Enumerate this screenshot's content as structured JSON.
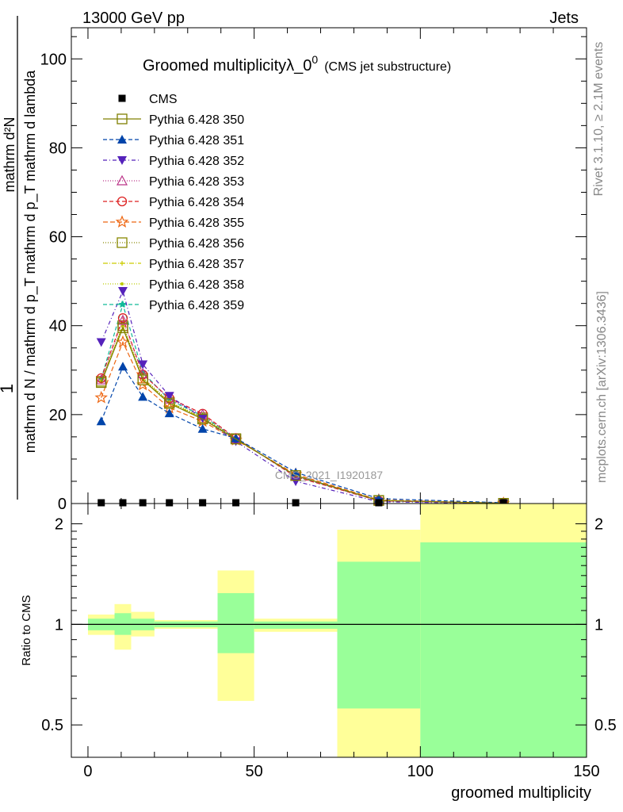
{
  "header": {
    "energy_label": "13000 GeV pp",
    "category": "Jets"
  },
  "title": {
    "main": "Groomed multiplicityλ_0",
    "superscript": "0",
    "sub": "(CMS jet substructure)"
  },
  "side_labels": {
    "rivet": "Rivet 3.1.10, ≥ 2.1M events",
    "mcplots": "mcplots.cern.ch [arXiv:1306.3436]"
  },
  "watermark": "CMS_2021_I1920187",
  "colors": {
    "band_yellow": "#ffff99",
    "band_green": "#99ff99",
    "reference": "#000000"
  },
  "chart_data": [
    {
      "type": "line",
      "panel": "main",
      "ylabel_numerator": "1",
      "ylabel_denominator": "mathrm d N / mathrm d p_T mathrm d p_T mathrm d lambda",
      "ylabel_top": "mathrm d²N",
      "xlim": [
        -5,
        150
      ],
      "ylim": [
        0,
        107
      ],
      "yticks": [
        0,
        20,
        40,
        60,
        80,
        100
      ],
      "x": [
        4,
        10.5,
        16.5,
        24.5,
        34.5,
        44.5,
        62.5,
        87.5,
        125
      ],
      "series": [
        {
          "name": "CMS",
          "color": "#000000",
          "dash": "",
          "marker": "filled-square",
          "values": [
            0,
            0,
            0,
            0,
            0,
            0,
            0,
            0,
            0
          ]
        },
        {
          "name": "Pythia 6.428 350",
          "color": "#808000",
          "dash": "",
          "marker": "open-square",
          "values": [
            27.2,
            39.5,
            27.8,
            22.5,
            19.0,
            14.5,
            6.3,
            0.7,
            0.06
          ]
        },
        {
          "name": "Pythia 6.428 351",
          "color": "#0044aa",
          "dash": "5,3",
          "marker": "filled-triangle-up",
          "values": [
            18.5,
            30.8,
            24.0,
            20.3,
            16.8,
            14.7,
            7.0,
            1.1,
            0.18
          ]
        },
        {
          "name": "Pythia 6.428 352",
          "color": "#5522bb",
          "dash": "5,3,1,3",
          "marker": "filled-triangle-down",
          "values": [
            36.3,
            47.8,
            31.3,
            24.2,
            19.2,
            14.0,
            5.0,
            0.4,
            0.03
          ]
        },
        {
          "name": "Pythia 6.428 353",
          "color": "#bb3388",
          "dash": "1,2",
          "marker": "open-triangle-up",
          "values": [
            27.8,
            41.2,
            29.2,
            23.5,
            20.0,
            14.6,
            6.1,
            0.6,
            0.05
          ]
        },
        {
          "name": "Pythia 6.428 354",
          "color": "#dd2222",
          "dash": "5,3",
          "marker": "open-circle",
          "values": [
            28.2,
            41.7,
            29.0,
            23.7,
            20.2,
            14.7,
            6.0,
            0.6,
            0.05
          ]
        },
        {
          "name": "Pythia 6.428 355",
          "color": "#ee6611",
          "dash": "6,3",
          "marker": "open-star",
          "values": [
            23.8,
            36.3,
            26.7,
            21.5,
            18.5,
            14.3,
            6.6,
            0.8,
            0.08
          ]
        },
        {
          "name": "Pythia 6.428 356",
          "color": "#888800",
          "dash": "1,2",
          "marker": "open-square",
          "values": [
            27.5,
            40.0,
            28.2,
            22.8,
            19.3,
            14.6,
            6.3,
            0.7,
            0.06
          ]
        },
        {
          "name": "Pythia 6.428 357",
          "color": "#cccc00",
          "dash": "6,2,1,2",
          "marker": "small-plus",
          "values": [
            27.4,
            39.8,
            28.0,
            22.7,
            19.2,
            14.5,
            6.3,
            0.7,
            0.06
          ]
        },
        {
          "name": "Pythia 6.428 358",
          "color": "#bbcc00",
          "dash": "1,2",
          "marker": "small-dot",
          "values": [
            27.6,
            40.1,
            28.3,
            22.9,
            19.4,
            14.6,
            6.2,
            0.7,
            0.06
          ]
        },
        {
          "name": "Pythia 6.428 359",
          "color": "#11bb99",
          "dash": "5,3",
          "marker": "filled-star",
          "values": [
            28.0,
            44.8,
            29.5,
            23.3,
            19.7,
            14.6,
            6.1,
            0.6,
            0.05
          ]
        }
      ]
    },
    {
      "type": "area",
      "panel": "ratio",
      "ylabel": "Ratio to CMS",
      "xlabel": "groomed multiplicity",
      "xlim": [
        -5,
        150
      ],
      "ylim": [
        0.4,
        2.3
      ],
      "xticks": [
        0,
        50,
        100,
        150
      ],
      "yticks": [
        0.5,
        1,
        2
      ],
      "log_y": true,
      "reference_line": 1,
      "bins": [
        {
          "x_low": 0,
          "x_high": 8,
          "yellow": [
            0.93,
            1.07
          ],
          "green": [
            0.96,
            1.04
          ]
        },
        {
          "x_low": 8,
          "x_high": 13,
          "yellow": [
            0.84,
            1.15
          ],
          "green": [
            0.93,
            1.08
          ]
        },
        {
          "x_low": 13,
          "x_high": 20,
          "yellow": [
            0.92,
            1.09
          ],
          "green": [
            0.96,
            1.04
          ]
        },
        {
          "x_low": 20,
          "x_high": 39,
          "yellow": [
            0.97,
            1.03
          ],
          "green": [
            0.98,
            1.02
          ]
        },
        {
          "x_low": 39,
          "x_high": 50,
          "yellow": [
            0.59,
            1.45
          ],
          "green": [
            0.82,
            1.24
          ]
        },
        {
          "x_low": 50,
          "x_high": 75,
          "yellow": [
            0.95,
            1.04
          ],
          "green": [
            0.97,
            1.02
          ]
        },
        {
          "x_low": 75,
          "x_high": 100,
          "yellow": [
            0.38,
            1.92
          ],
          "green": [
            0.56,
            1.54
          ]
        },
        {
          "x_low": 100,
          "x_high": 150,
          "yellow": [
            0.38,
            2.32
          ],
          "green": [
            0.38,
            1.76
          ]
        }
      ]
    }
  ]
}
